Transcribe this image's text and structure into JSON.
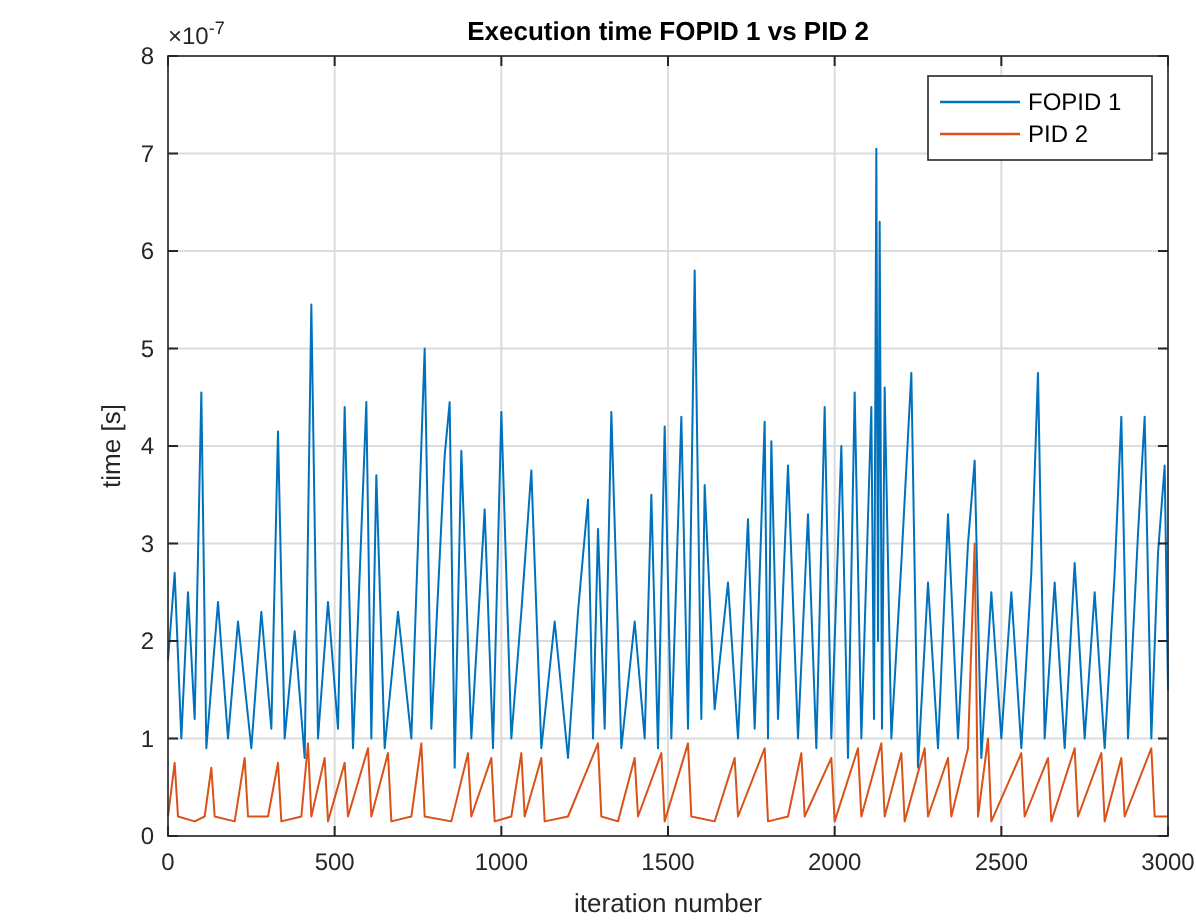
{
  "chart_data": {
    "type": "line",
    "title": "Execution time FOPID 1 vs PID 2",
    "xlabel": "iteration number",
    "ylabel": "time [s]",
    "annotations": [
      "×10$^{-7}$"
    ],
    "xlim": [
      0,
      3000
    ],
    "xticks": [
      0,
      500,
      1000,
      1500,
      2000,
      2500,
      3000
    ],
    "ylim": [
      0,
      8
    ],
    "yticks": [
      0,
      1,
      2,
      3,
      4,
      5,
      6,
      7,
      8
    ],
    "grid": true,
    "legend": "top right",
    "line_style": "solid",
    "marker": "none",
    "series": [
      {
        "name": "FOPID 1",
        "color": "#0072bd",
        "x": [
          0,
          20,
          40,
          60,
          80,
          100,
          115,
          150,
          180,
          210,
          250,
          280,
          310,
          330,
          350,
          380,
          410,
          430,
          450,
          480,
          510,
          530,
          555,
          595,
          610,
          625,
          650,
          690,
          730,
          770,
          790,
          830,
          845,
          860,
          880,
          910,
          950,
          975,
          1000,
          1030,
          1060,
          1090,
          1120,
          1160,
          1200,
          1230,
          1260,
          1275,
          1290,
          1310,
          1330,
          1360,
          1400,
          1430,
          1450,
          1470,
          1490,
          1510,
          1540,
          1560,
          1580,
          1600,
          1610,
          1640,
          1680,
          1710,
          1740,
          1760,
          1790,
          1800,
          1810,
          1830,
          1860,
          1890,
          1920,
          1945,
          1970,
          1990,
          2020,
          2040,
          2060,
          2080,
          2110,
          2118,
          2125,
          2130,
          2135,
          2142,
          2150,
          2170,
          2200,
          2230,
          2250,
          2280,
          2310,
          2340,
          2370,
          2400,
          2420,
          2440,
          2470,
          2500,
          2530,
          2560,
          2590,
          2610,
          2630,
          2660,
          2690,
          2720,
          2750,
          2780,
          2810,
          2840,
          2860,
          2880,
          2910,
          2930,
          2950,
          2970,
          2990,
          3000
        ],
        "values": [
          1.8,
          2.7,
          1.0,
          2.5,
          1.2,
          4.55,
          0.9,
          2.4,
          1.0,
          2.2,
          0.9,
          2.3,
          1.1,
          4.15,
          1.0,
          2.1,
          0.8,
          5.45,
          1.0,
          2.4,
          1.1,
          4.4,
          0.9,
          4.45,
          1.0,
          3.7,
          0.9,
          2.3,
          1.0,
          5.0,
          1.1,
          3.9,
          4.45,
          0.7,
          3.95,
          1.0,
          3.35,
          0.9,
          4.35,
          1.0,
          2.3,
          3.75,
          0.9,
          2.2,
          0.8,
          2.3,
          3.45,
          1.0,
          3.15,
          1.1,
          4.35,
          0.9,
          2.2,
          1.0,
          3.5,
          0.9,
          4.2,
          1.0,
          4.3,
          1.1,
          5.8,
          1.2,
          3.6,
          1.3,
          2.6,
          1.0,
          3.25,
          1.1,
          4.25,
          1.0,
          4.05,
          1.2,
          3.8,
          1.0,
          3.3,
          0.9,
          4.4,
          1.0,
          4.0,
          0.8,
          4.55,
          1.0,
          4.4,
          1.2,
          7.05,
          2.0,
          6.3,
          1.1,
          4.6,
          1.0,
          2.8,
          4.75,
          0.7,
          2.6,
          0.9,
          3.3,
          1.0,
          3.0,
          3.85,
          0.8,
          2.5,
          1.0,
          2.5,
          0.9,
          2.7,
          4.75,
          1.0,
          2.6,
          0.9,
          2.8,
          1.0,
          2.5,
          0.9,
          2.7,
          4.3,
          1.0,
          3.1,
          4.3,
          1.0,
          2.9,
          3.8,
          1.5
        ]
      },
      {
        "name": "PID 2",
        "color": "#d95319",
        "x": [
          0,
          20,
          30,
          80,
          110,
          130,
          140,
          200,
          230,
          240,
          300,
          330,
          340,
          400,
          420,
          430,
          470,
          480,
          530,
          540,
          600,
          610,
          660,
          670,
          730,
          760,
          770,
          850,
          900,
          910,
          970,
          980,
          1030,
          1060,
          1070,
          1120,
          1130,
          1200,
          1290,
          1300,
          1350,
          1400,
          1410,
          1480,
          1490,
          1560,
          1570,
          1640,
          1700,
          1710,
          1790,
          1800,
          1860,
          1900,
          1910,
          1990,
          2000,
          2070,
          2080,
          2140,
          2150,
          2200,
          2210,
          2270,
          2280,
          2340,
          2350,
          2400,
          2420,
          2430,
          2460,
          2470,
          2560,
          2570,
          2640,
          2650,
          2720,
          2730,
          2800,
          2810,
          2860,
          2870,
          2950,
          2960,
          3000
        ],
        "values": [
          0.2,
          0.75,
          0.2,
          0.15,
          0.2,
          0.7,
          0.2,
          0.15,
          0.8,
          0.2,
          0.2,
          0.75,
          0.15,
          0.2,
          0.95,
          0.2,
          0.8,
          0.15,
          0.75,
          0.2,
          0.9,
          0.2,
          0.85,
          0.15,
          0.2,
          0.95,
          0.2,
          0.15,
          0.85,
          0.2,
          0.8,
          0.15,
          0.2,
          0.85,
          0.2,
          0.8,
          0.15,
          0.2,
          0.95,
          0.2,
          0.15,
          0.8,
          0.2,
          0.85,
          0.15,
          0.95,
          0.2,
          0.15,
          0.8,
          0.2,
          0.9,
          0.15,
          0.2,
          0.85,
          0.2,
          0.8,
          0.15,
          0.9,
          0.2,
          0.95,
          0.2,
          0.85,
          0.15,
          0.9,
          0.2,
          0.8,
          0.2,
          0.9,
          3.0,
          0.2,
          1.0,
          0.15,
          0.85,
          0.2,
          0.8,
          0.15,
          0.9,
          0.2,
          0.85,
          0.15,
          0.8,
          0.2,
          0.9,
          0.2,
          0.2
        ]
      }
    ]
  }
}
